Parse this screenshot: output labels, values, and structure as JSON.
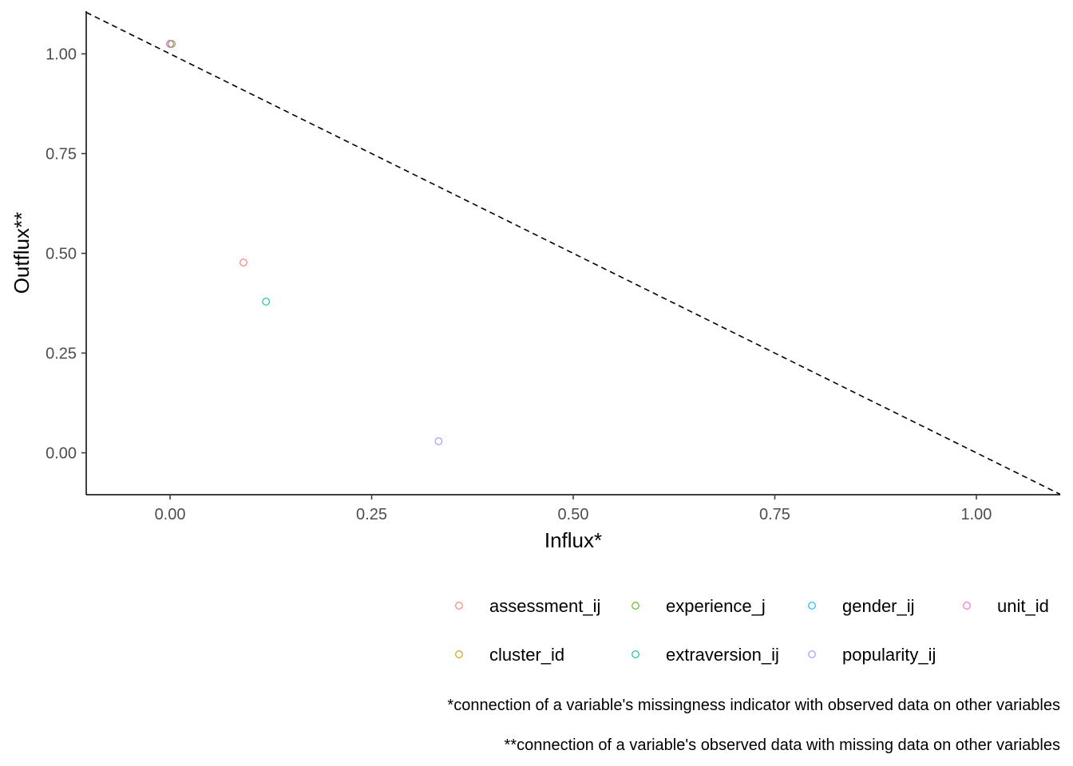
{
  "chart_data": {
    "type": "scatter",
    "xlabel": "Influx*",
    "ylabel": "Outflux**",
    "xlim": [
      -0.104,
      1.104
    ],
    "ylim": [
      -0.105,
      1.107
    ],
    "x_ticks": [
      0,
      0.25,
      0.5,
      0.75,
      1
    ],
    "x_tick_labels": [
      "0.00",
      "0.25",
      "0.50",
      "0.75",
      "1.00"
    ],
    "y_ticks": [
      0,
      0.25,
      0.5,
      0.75,
      1
    ],
    "y_tick_labels": [
      "0.00",
      "0.25",
      "0.50",
      "0.75",
      "1.00"
    ],
    "grid": false,
    "reference_line": {
      "style": "dashed",
      "from": [
        -0.104,
        1.104
      ],
      "to": [
        1.104,
        -0.104
      ]
    },
    "series": [
      {
        "name": "assessment_ij",
        "color": "#F8766D",
        "points": [
          [
            0.091,
            0.477
          ]
        ]
      },
      {
        "name": "cluster_id",
        "color": "#C49A00",
        "points": [
          [
            0.0,
            1.025
          ]
        ]
      },
      {
        "name": "experience_j",
        "color": "#53B400",
        "points": [
          [
            0.002,
            1.025
          ]
        ]
      },
      {
        "name": "extraversion_ij",
        "color": "#00C094",
        "points": [
          [
            0.119,
            0.379
          ]
        ]
      },
      {
        "name": "gender_ij",
        "color": "#00B6EB",
        "points": [
          [
            0.0,
            1.025
          ]
        ]
      },
      {
        "name": "popularity_ij",
        "color": "#A58AFF",
        "points": [
          [
            0.333,
            0.029
          ]
        ]
      },
      {
        "name": "unit_id",
        "color": "#FB61D7",
        "points": [
          [
            0.0,
            1.025
          ]
        ]
      }
    ],
    "legend_rows": [
      [
        "assessment_ij",
        "experience_j",
        "gender_ij",
        "unit_id"
      ],
      [
        "cluster_id",
        "extraversion_ij",
        "popularity_ij"
      ]
    ],
    "legend_position": "bottom-right",
    "captions": [
      "*connection of a variable's missingness indicator with observed data on other variables",
      "**connection of a variable's observed data with missing data on other variables"
    ]
  }
}
